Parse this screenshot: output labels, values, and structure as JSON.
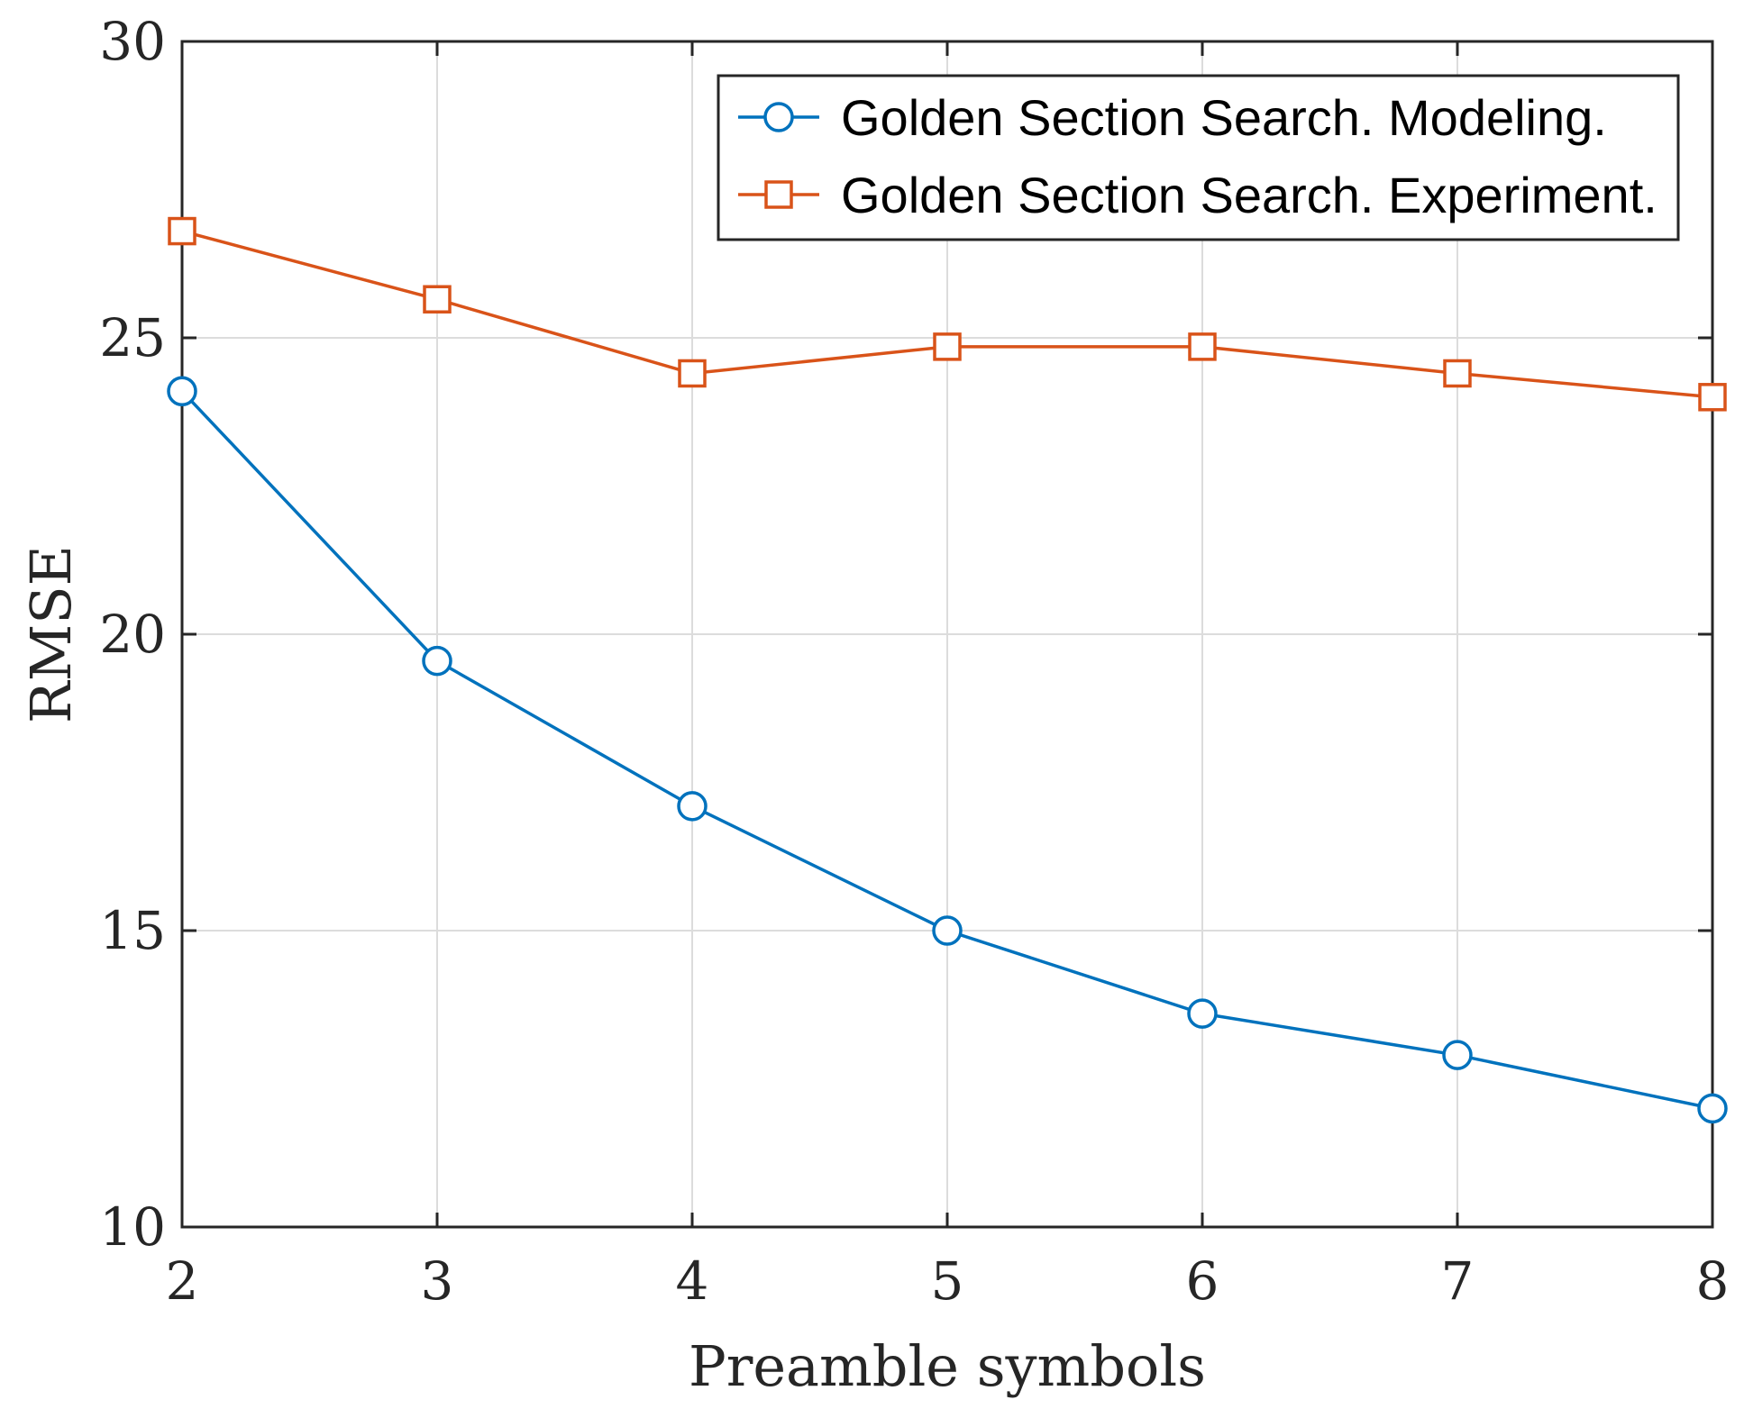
{
  "chart_data": {
    "type": "line",
    "xlabel": "Preamble symbols",
    "ylabel": "RMSE",
    "xlim": [
      2,
      8
    ],
    "ylim": [
      10,
      30
    ],
    "xticks": [
      2,
      3,
      4,
      5,
      6,
      7,
      8
    ],
    "yticks": [
      10,
      15,
      20,
      25,
      30
    ],
    "x": [
      2,
      3,
      4,
      5,
      6,
      7,
      8
    ],
    "grid": true,
    "legend_position": "top-right",
    "series": [
      {
        "name": "Golden Section Search. Modeling.",
        "marker": "circle",
        "color": "#0072BD",
        "values": [
          24.1,
          19.55,
          17.1,
          15.0,
          13.6,
          12.9,
          12.0
        ]
      },
      {
        "name": "Golden Section Search. Experiment.",
        "marker": "square",
        "color": "#D95319",
        "values": [
          26.8,
          25.65,
          24.4,
          24.85,
          24.85,
          24.4,
          24.0
        ]
      }
    ]
  }
}
